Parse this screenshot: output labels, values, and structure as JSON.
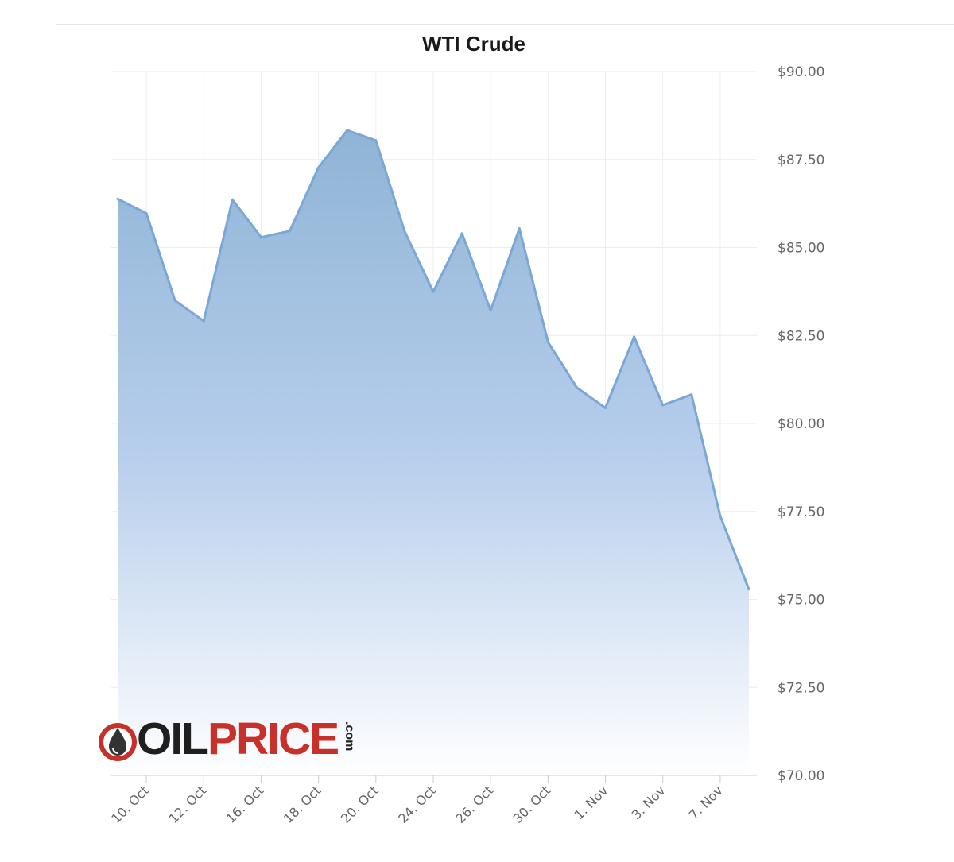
{
  "chart_data": {
    "type": "area",
    "title": "WTI Crude",
    "xlabel": "",
    "ylabel": "",
    "ylim": [
      70,
      90
    ],
    "y_ticks": [
      90,
      87.5,
      85,
      82.5,
      80,
      77.5,
      75,
      72.5,
      70
    ],
    "y_tick_labels": [
      "$90.00",
      "$87.50",
      "$85.00",
      "$82.50",
      "$80.00",
      "$77.50",
      "$75.00",
      "$72.50",
      "$70.00"
    ],
    "x_ticks": [
      "10. Oct",
      "12. Oct",
      "16. Oct",
      "18. Oct",
      "20. Oct",
      "24. Oct",
      "26. Oct",
      "30. Oct",
      "1. Nov",
      "3. Nov",
      "7. Nov"
    ],
    "grid": true,
    "series": [
      {
        "values": [
          86.38,
          85.97,
          83.49,
          82.91,
          86.36,
          85.29,
          85.47,
          87.27,
          88.33,
          88.04,
          85.46,
          83.74,
          85.4,
          83.21,
          85.54,
          82.31,
          81.02,
          80.44,
          82.46,
          80.52,
          80.82,
          77.37,
          75.29
        ]
      }
    ],
    "colors": {
      "line": "#7ba7d7",
      "fill_top": "#8fb4d5",
      "fill_bottom": "#ffffff"
    }
  },
  "logo": {
    "text_oil": "OIL",
    "text_price": "PRICE",
    "text_com": ".com"
  }
}
